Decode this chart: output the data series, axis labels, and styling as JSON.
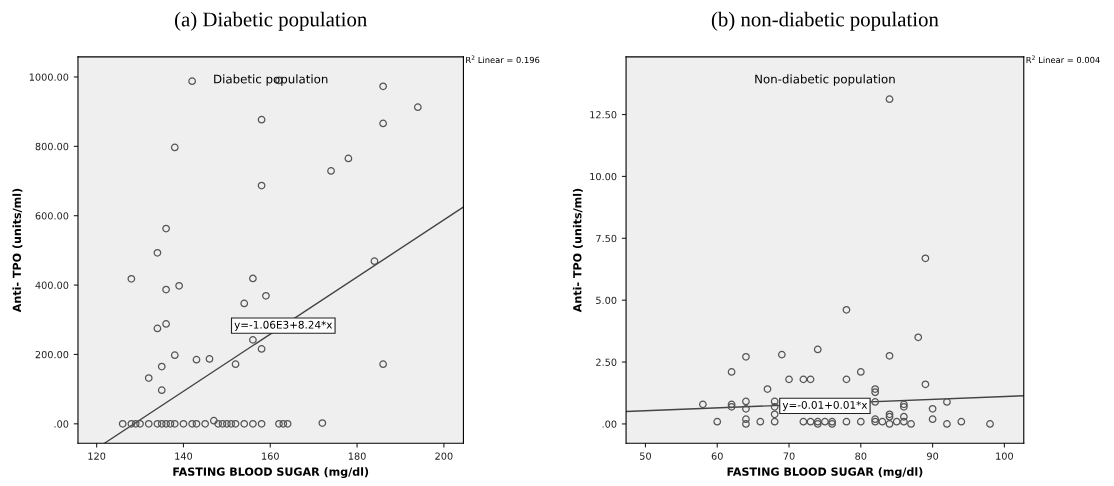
{
  "chart_data": [
    {
      "type": "scatter",
      "title": "(a) Diabetic population",
      "subtitle": "Diabetic population",
      "xlabel": "FASTING BLOOD SUGAR (mg/dl)",
      "ylabel": "Anti- TPO (units/ml)",
      "xlim": [
        115.7,
        204.5
      ],
      "ylim": [
        -56,
        1058
      ],
      "xticks": [
        120,
        140,
        160,
        180,
        200
      ],
      "yticks": [
        {
          "value": 0,
          "label": ".00"
        },
        {
          "value": 200,
          "label": "200.00"
        },
        {
          "value": 400,
          "label": "400.00"
        },
        {
          "value": 600,
          "label": "600.00"
        },
        {
          "value": 800,
          "label": "800.00"
        },
        {
          "value": 1000,
          "label": "1000.00"
        }
      ],
      "grid": false,
      "annotations": [
        "R$^{2}$ Linear = 0.196",
        {
          "text": "y=-1.06E3+8.24*x",
          "x": 163,
          "y": 283
        }
      ],
      "series": [
        {
          "type": "scatter",
          "marker": "circle",
          "color": "#555555",
          "x": [
            142,
            162,
            186,
            194,
            158,
            186,
            138,
            178,
            174,
            158,
            136,
            134,
            184,
            128,
            156,
            139,
            136,
            159,
            154,
            134,
            136,
            156,
            158,
            138,
            143,
            146,
            152,
            186,
            135,
            132,
            135,
            126,
            128,
            129,
            130,
            132,
            134,
            135,
            136,
            137,
            138,
            140,
            142,
            143,
            145,
            147,
            148,
            149,
            150,
            151,
            152,
            154,
            156,
            158,
            162,
            163,
            164,
            172
          ],
          "values": [
            988,
            990,
            973,
            913,
            877,
            866,
            797,
            765,
            729,
            687,
            563,
            493,
            469,
            418,
            419,
            398,
            387,
            369,
            347,
            275,
            288,
            242,
            216,
            198,
            185,
            187,
            172,
            172,
            165,
            132,
            97,
            0,
            0,
            0,
            0,
            0,
            0,
            0,
            0,
            0,
            0,
            0,
            0,
            0,
            0,
            9,
            0,
            0,
            0,
            0,
            0,
            0,
            0,
            0,
            0,
            0,
            0,
            2
          ]
        },
        {
          "type": "line",
          "marker": "none",
          "line_style": "solid",
          "color": "#444444",
          "x": [
            121.8,
            204.5
          ],
          "values": [
            -56,
            625
          ]
        }
      ]
    },
    {
      "type": "scatter",
      "title": "(b) non-diabetic population",
      "subtitle": "Non-diabetic population",
      "xlabel": "FASTING BLOOD SUGAR (mg/dl)",
      "ylabel": "Anti- TPO (units/ml)",
      "xlim": [
        47.3,
        102.7
      ],
      "ylim": [
        -0.78,
        14.83
      ],
      "xticks": [
        50,
        60,
        70,
        80,
        90,
        100
      ],
      "yticks": [
        {
          "value": 0,
          "label": ".00"
        },
        {
          "value": 2.5,
          "label": "2.50"
        },
        {
          "value": 5,
          "label": "5.00"
        },
        {
          "value": 7.5,
          "label": "7.50"
        },
        {
          "value": 10,
          "label": "10.00"
        },
        {
          "value": 12.5,
          "label": "12.50"
        }
      ],
      "grid": false,
      "annotations": [
        "R$^{2}$ Linear = 0.004",
        {
          "text": "y=-0.01+0.01*x",
          "x": 75,
          "y": 0.73
        }
      ],
      "series": [
        {
          "type": "scatter",
          "marker": "circle",
          "color": "#555555",
          "x": [
            84,
            89,
            78,
            88,
            74,
            69,
            84,
            64,
            62,
            80,
            70,
            72,
            73,
            78,
            89,
            67,
            82,
            82,
            58,
            62,
            62,
            64,
            64,
            68,
            68,
            82,
            86,
            86,
            92,
            90,
            68,
            84,
            84,
            86,
            64,
            90,
            82,
            60,
            66,
            68,
            72,
            73,
            74,
            75,
            76,
            78,
            80,
            82,
            83,
            85,
            86,
            94,
            64,
            87,
            92,
            98,
            84,
            74,
            76
          ],
          "values": [
            13.12,
            6.69,
            4.61,
            3.5,
            3.01,
            2.8,
            2.75,
            2.71,
            2.1,
            2.1,
            1.8,
            1.8,
            1.8,
            1.8,
            1.6,
            1.41,
            1.41,
            1.28,
            0.79,
            0.79,
            0.69,
            0.91,
            0.61,
            0.91,
            0.69,
            0.89,
            0.79,
            0.69,
            0.89,
            0.61,
            0.39,
            0.39,
            0.29,
            0.29,
            0.19,
            0.19,
            0.19,
            0.09,
            0.09,
            0.09,
            0.09,
            0.09,
            0.09,
            0.09,
            0.09,
            0.09,
            0.09,
            0.09,
            0.09,
            0.09,
            0.09,
            0.09,
            0,
            0,
            0,
            0,
            0,
            0,
            0
          ]
        },
        {
          "type": "line",
          "marker": "none",
          "line_style": "solid",
          "color": "#444444",
          "x": [
            47.3,
            102.7
          ],
          "values": [
            0.5,
            1.14
          ]
        }
      ]
    }
  ]
}
